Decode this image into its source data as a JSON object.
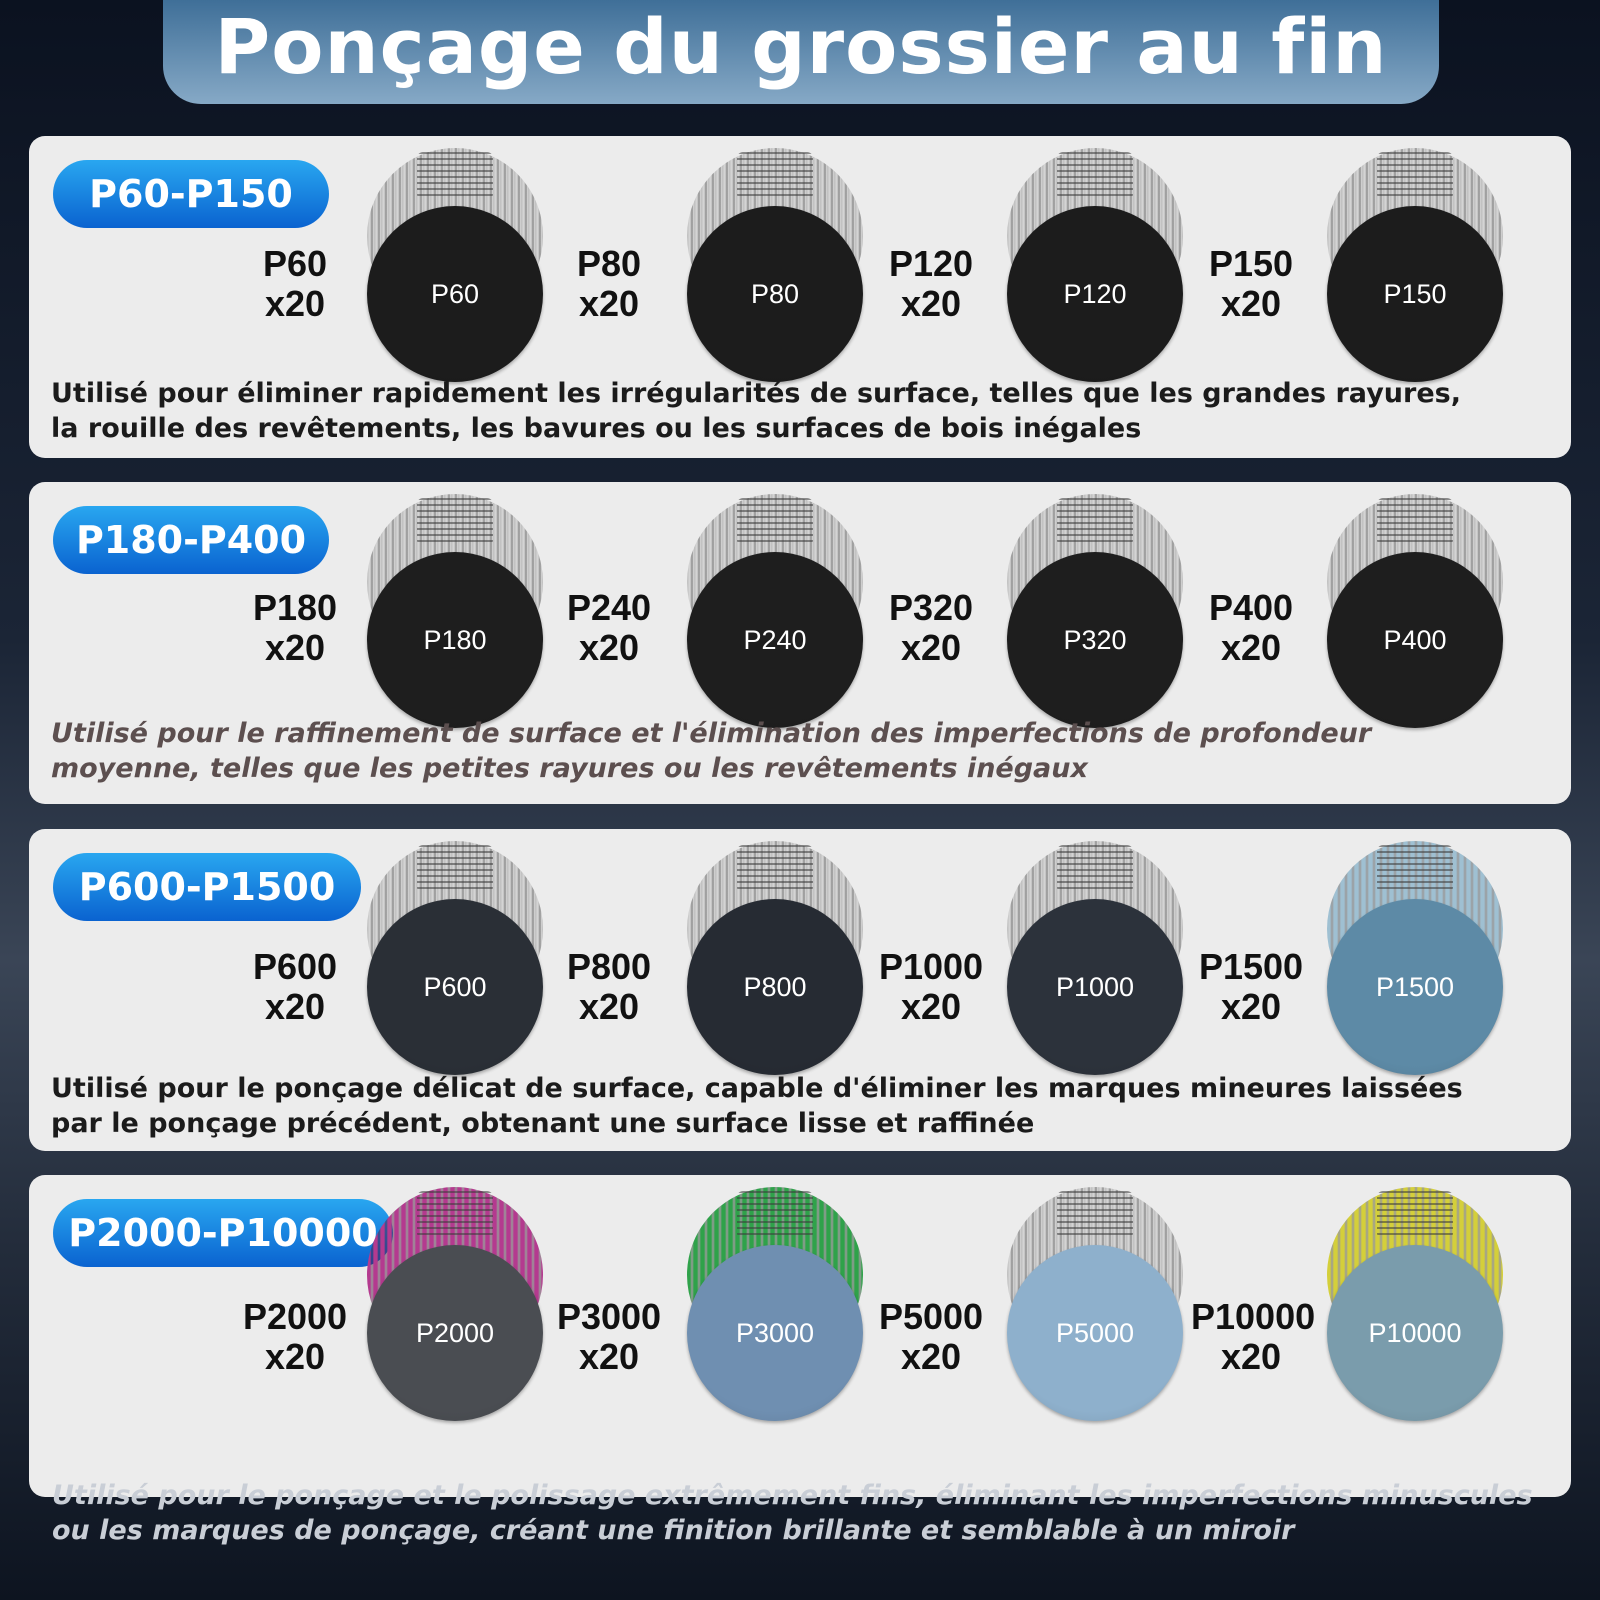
{
  "title": "Ponçage du grossier au fin",
  "sections": [
    {
      "range": "P60-P150",
      "description": "Utilisé pour éliminer rapidement les irrégularités de surface, telles que les grandes rayures, la rouille des revêtements, les bavures ou les surfaces de bois inégales",
      "grades": [
        {
          "label": "P60",
          "qty": "x20",
          "disc": "P60",
          "back": "#c4c4c4",
          "front": "#1c1c1c"
        },
        {
          "label": "P80",
          "qty": "x20",
          "disc": "P80",
          "back": "#c4c4c4",
          "front": "#1c1c1c"
        },
        {
          "label": "P120",
          "qty": "x20",
          "disc": "P120",
          "back": "#c4c4c4",
          "front": "#1c1c1c"
        },
        {
          "label": "P150",
          "qty": "x20",
          "disc": "P150",
          "back": "#c4c4c4",
          "front": "#1c1c1c"
        }
      ]
    },
    {
      "range": "P180-P400",
      "description": "Utilisé pour le raffinement de surface et l'élimination des imperfections de profondeur moyenne, telles que les petites rayures ou les revêtements inégaux",
      "grades": [
        {
          "label": "P180",
          "qty": "x20",
          "disc": "P180",
          "back": "#c4c4c4",
          "front": "#1e1e1e"
        },
        {
          "label": "P240",
          "qty": "x20",
          "disc": "P240",
          "back": "#c4c4c4",
          "front": "#1e1e1e"
        },
        {
          "label": "P320",
          "qty": "x20",
          "disc": "P320",
          "back": "#c4c4c4",
          "front": "#1e1e1e"
        },
        {
          "label": "P400",
          "qty": "x20",
          "disc": "P400",
          "back": "#c4c4c4",
          "front": "#1e1e1e"
        }
      ]
    },
    {
      "range": "P600-P1500",
      "description": "Utilisé pour le ponçage délicat de surface, capable d'éliminer les marques mineures laissées par le ponçage précédent, obtenant une surface lisse et raffinée",
      "grades": [
        {
          "label": "P600",
          "qty": "x20",
          "disc": "P600",
          "back": "#c4c4c4",
          "front": "#2a2f36"
        },
        {
          "label": "P800",
          "qty": "x20",
          "disc": "P800",
          "back": "#c4c4c4",
          "front": "#262b33"
        },
        {
          "label": "P1000",
          "qty": "x20",
          "disc": "P1000",
          "back": "#c4c4c4",
          "front": "#2c323b"
        },
        {
          "label": "P1500",
          "qty": "x20",
          "disc": "P1500",
          "back": "#9fc0d2",
          "front": "#5d8aa6"
        }
      ]
    },
    {
      "range": "P2000-P10000",
      "description": "Utilisé pour le ponçage et le polissage extrêmement fins, éliminant les imperfections minuscules ou les marques de ponçage, créant une finition brillante et semblable à un miroir",
      "grades": [
        {
          "label": "P2000",
          "qty": "x20",
          "disc": "P2000",
          "back": "#b43a8f",
          "front": "#4a4d52"
        },
        {
          "label": "P3000",
          "qty": "x20",
          "disc": "P3000",
          "back": "#2fa24a",
          "front": "#6f8fb1"
        },
        {
          "label": "P5000",
          "qty": "x20",
          "disc": "P5000",
          "back": "#c4c4c4",
          "front": "#8eb0cc"
        },
        {
          "label": "P10000",
          "qty": "x20",
          "disc": "P10000",
          "back": "#d4cf3a",
          "front": "#7a9cac"
        }
      ]
    }
  ]
}
